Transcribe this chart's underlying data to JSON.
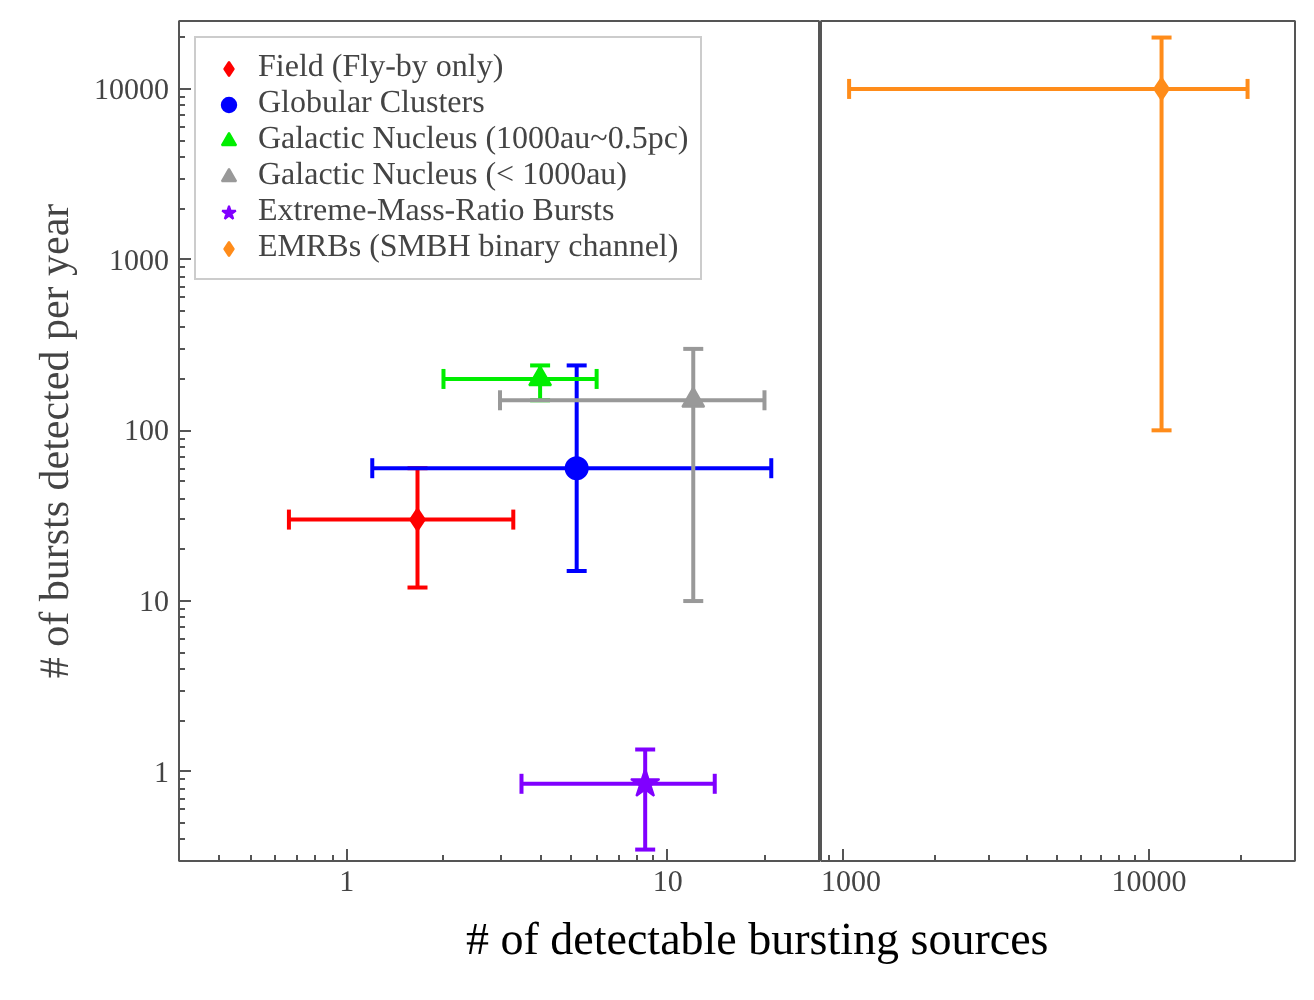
{
  "chart_data": [
    {
      "type": "scatter",
      "xlabel": "# of detectable bursting sources",
      "ylabel": "# of bursts detected per year",
      "log": "xy",
      "legend": "top left",
      "grid": false,
      "xlim": [
        0.3,
        30
      ],
      "xticks": [
        1,
        10
      ],
      "ylim": [
        0.3,
        25000
      ],
      "yticks": [
        1,
        10,
        100,
        1000,
        10000
      ],
      "series": [
        {
          "name": "Field (Fly-by only)",
          "color": "#ff0000",
          "marker": "diamond",
          "x": [
            1.66
          ],
          "values": [
            30
          ],
          "errors": [
            [
              12,
              60
            ]
          ],
          "xerrors": [
            [
              0.66,
              3.3
            ]
          ]
        },
        {
          "name": "Globular Clusters",
          "color": "#0000ff",
          "marker": "circle",
          "x": [
            5.2
          ],
          "values": [
            60
          ],
          "errors": [
            [
              15,
              240
            ]
          ],
          "xerrors": [
            [
              1.2,
              21
            ]
          ]
        },
        {
          "name": "Galactic Nucleus (1000au~0.5pc)",
          "color": "#00ee00",
          "marker": "triangle",
          "x": [
            4
          ],
          "values": [
            200
          ],
          "errors": [
            [
              150,
              240
            ]
          ],
          "xerrors": [
            [
              2,
              6
            ]
          ]
        },
        {
          "name": "Galactic Nucleus (< 1000au)",
          "color": "#999999",
          "marker": "triangle",
          "x": [
            12
          ],
          "values": [
            150
          ],
          "errors": [
            [
              10,
              300
            ]
          ],
          "xerrors": [
            [
              3,
              20
            ]
          ]
        },
        {
          "name": "Extreme-Mass-Ratio Bursts",
          "color": "#8000ff",
          "marker": "star",
          "x": [
            8.5
          ],
          "values": [
            0.85
          ],
          "errors": [
            [
              0.35,
              1.35
            ]
          ],
          "xerrors": [
            [
              3.5,
              14
            ]
          ]
        }
      ]
    },
    {
      "type": "scatter",
      "log": "xy",
      "tick_labels": "x",
      "grid": false,
      "xlim": [
        850,
        30000
      ],
      "xticks": [
        1000,
        10000
      ],
      "ylim": [
        0.3,
        25000
      ],
      "yticks": [
        1,
        10,
        100,
        1000,
        10000
      ],
      "series": [
        {
          "name": "EMRBs (SMBH binary channel)",
          "color": "#ff8c1a",
          "marker": "diamond",
          "x": [
            11000
          ],
          "values": [
            10000
          ],
          "errors": [
            [
              100,
              20000
            ]
          ],
          "xerrors": [
            [
              1050,
              21000
            ]
          ]
        }
      ]
    }
  ]
}
